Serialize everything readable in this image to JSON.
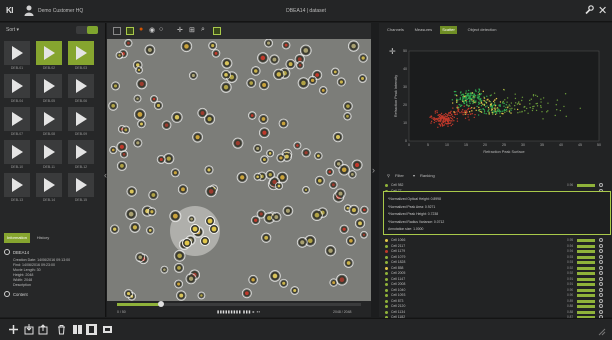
{
  "app": {
    "logo": "KI",
    "customer": "Demo Customer HQ",
    "title": "DBEA14 | dataset"
  },
  "left": {
    "sort_label": "Sort",
    "thumbs": [
      {
        "label": "DEB-01",
        "selected": false
      },
      {
        "label": "DEB-02",
        "selected": true
      },
      {
        "label": "DEB-03",
        "selected": true
      },
      {
        "label": "DEB-04",
        "selected": false
      },
      {
        "label": "DEB-05",
        "selected": false
      },
      {
        "label": "DEB-06",
        "selected": false
      },
      {
        "label": "DEB-07",
        "selected": false
      },
      {
        "label": "DEB-08",
        "selected": false
      },
      {
        "label": "DEB-09",
        "selected": false
      },
      {
        "label": "DEB-10",
        "selected": false
      },
      {
        "label": "DEB-11",
        "selected": false
      },
      {
        "label": "DEB-12",
        "selected": false
      },
      {
        "label": "DEB-13",
        "selected": false
      },
      {
        "label": "DEB-14",
        "selected": false
      },
      {
        "label": "DEB-15",
        "selected": false
      }
    ],
    "tabs": [
      "Information",
      "History"
    ],
    "info_title": "DBEA14",
    "info_rows": [
      "Creation Date: 14/06/2016 09:13:00",
      "Find: 14/06/2016 09:23:00",
      "Movie Length: 30",
      "Height: 2048",
      "Width: 2048",
      "Description"
    ],
    "content_label": "Content"
  },
  "viewer": {
    "scale_label": "20 µm",
    "time_left": "0 / 50",
    "time_mid": "▮▮▮▮▮▮▮▮▮ ▮▮▮ ▸ ▪▪",
    "time_right": "2048 / 2048",
    "timeline_progress": 0.18
  },
  "right": {
    "tabs": [
      "Channels",
      "Measures",
      "Scatter",
      "Object detection"
    ],
    "active_tab": 2,
    "filter_label": "Filter",
    "ranking_label": "Ranking",
    "detail": [
      "*Normalized Optical Height: 0.8998",
      "*Normalized Peak Area: 0.9271",
      "*Normalized Peak Height: 0.7238",
      "*Normalized Radius Variance: 0.0712",
      "Annotation size: 1.0000"
    ],
    "cells": [
      {
        "name": "Cell 982",
        "val": "0.96",
        "color": "#8fb23a"
      },
      {
        "name": "Cell 77",
        "val": "",
        "color": "#8fb23a"
      },
      {
        "name": "Cell 1066",
        "val": "0.95",
        "color": "#e2c74a"
      },
      {
        "name": "Cell 2117",
        "val": "0.94",
        "color": "#8fb23a"
      },
      {
        "name": "Cell 1179",
        "val": "0.94",
        "color": "#c0392b"
      },
      {
        "name": "Cell 1079",
        "val": "0.93",
        "color": "#8fb23a"
      },
      {
        "name": "Cell 1828",
        "val": "0.93",
        "color": "#8fb23a"
      },
      {
        "name": "Cell 858",
        "val": "0.92",
        "color": "#e2c74a"
      },
      {
        "name": "Cell 2005",
        "val": "0.92",
        "color": "#8fb23a"
      },
      {
        "name": "Cell 1147",
        "val": "0.91",
        "color": "#8fb23a"
      },
      {
        "name": "Cell 2008",
        "val": "0.91",
        "color": "#8fb23a"
      },
      {
        "name": "Cell 1040",
        "val": "0.90",
        "color": "#8fb23a"
      },
      {
        "name": "Cell 1093",
        "val": "0.90",
        "color": "#8fb23a"
      },
      {
        "name": "Cell 873",
        "val": "0.89",
        "color": "#8fb23a"
      },
      {
        "name": "Cell 2120",
        "val": "0.88",
        "color": "#8fb23a"
      },
      {
        "name": "Cell 1134",
        "val": "0.88",
        "color": "#8fb23a"
      },
      {
        "name": "Cell 1182",
        "val": "0.87",
        "color": "#8fb23a"
      }
    ]
  },
  "chart_data": {
    "type": "scatter",
    "xlabel": "Refraction Peak Surface",
    "ylabel": "Refraction Peak Intensity",
    "xlim": [
      0,
      50
    ],
    "ylim": [
      0,
      50
    ],
    "xticks": [
      0,
      5,
      10,
      15,
      20,
      25,
      30,
      35,
      40,
      45,
      50
    ],
    "yticks": [
      0,
      10,
      20,
      30,
      40,
      50
    ],
    "series": [
      {
        "color": "#c0392b",
        "clusters": [
          {
            "cx": 9,
            "cy": 12,
            "sx": 2.5,
            "sy": 3,
            "n": 150
          },
          {
            "cx": 14,
            "cy": 16,
            "sx": 3,
            "sy": 3,
            "n": 50
          }
        ]
      },
      {
        "color": "#2fa84f",
        "clusters": [
          {
            "cx": 16,
            "cy": 24,
            "sx": 3.5,
            "sy": 4,
            "n": 140
          },
          {
            "cx": 22,
            "cy": 18,
            "sx": 4,
            "sy": 3,
            "n": 60
          }
        ]
      },
      {
        "color": "#e2c74a",
        "clusters": [
          {
            "cx": 20,
            "cy": 20,
            "sx": 7,
            "sy": 6,
            "n": 70
          }
        ]
      },
      {
        "color": "#6a9b3a",
        "clusters": [
          {
            "cx": 30,
            "cy": 20,
            "sx": 10,
            "sy": 6,
            "n": 90
          }
        ]
      }
    ]
  }
}
